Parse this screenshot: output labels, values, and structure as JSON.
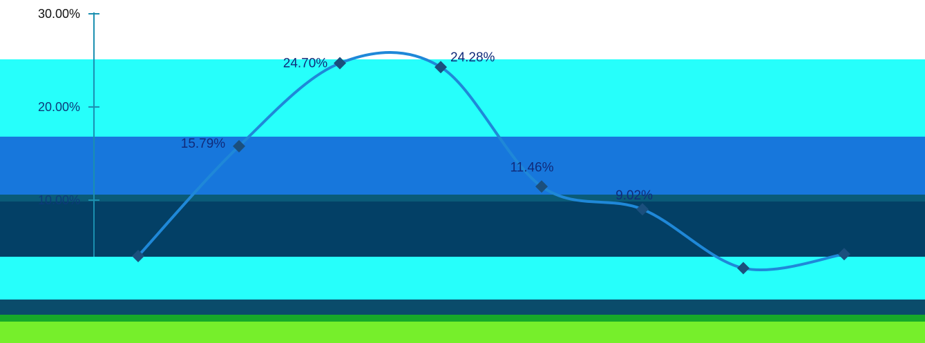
{
  "chart_data": {
    "type": "line",
    "title": "",
    "xlabel": "",
    "ylabel": "",
    "ylim": [
      0,
      30
    ],
    "yticks": [
      "30.00%",
      "20.00%",
      "10.00%"
    ],
    "grid": false,
    "legend": "none",
    "line_style": "smooth",
    "marker": "diamond",
    "colors": {
      "line": "#1f88d8",
      "line_dark": "#1a3fc8",
      "marker": "#1b4f7d"
    },
    "series": [
      {
        "values": [
          4.0,
          15.79,
          24.7,
          24.28,
          11.46,
          9.02,
          2.7,
          4.2
        ],
        "labels": [
          "",
          "15.79%",
          "24.70%",
          "24.28%",
          "11.46%",
          "9.02%",
          "",
          ""
        ]
      }
    ]
  }
}
